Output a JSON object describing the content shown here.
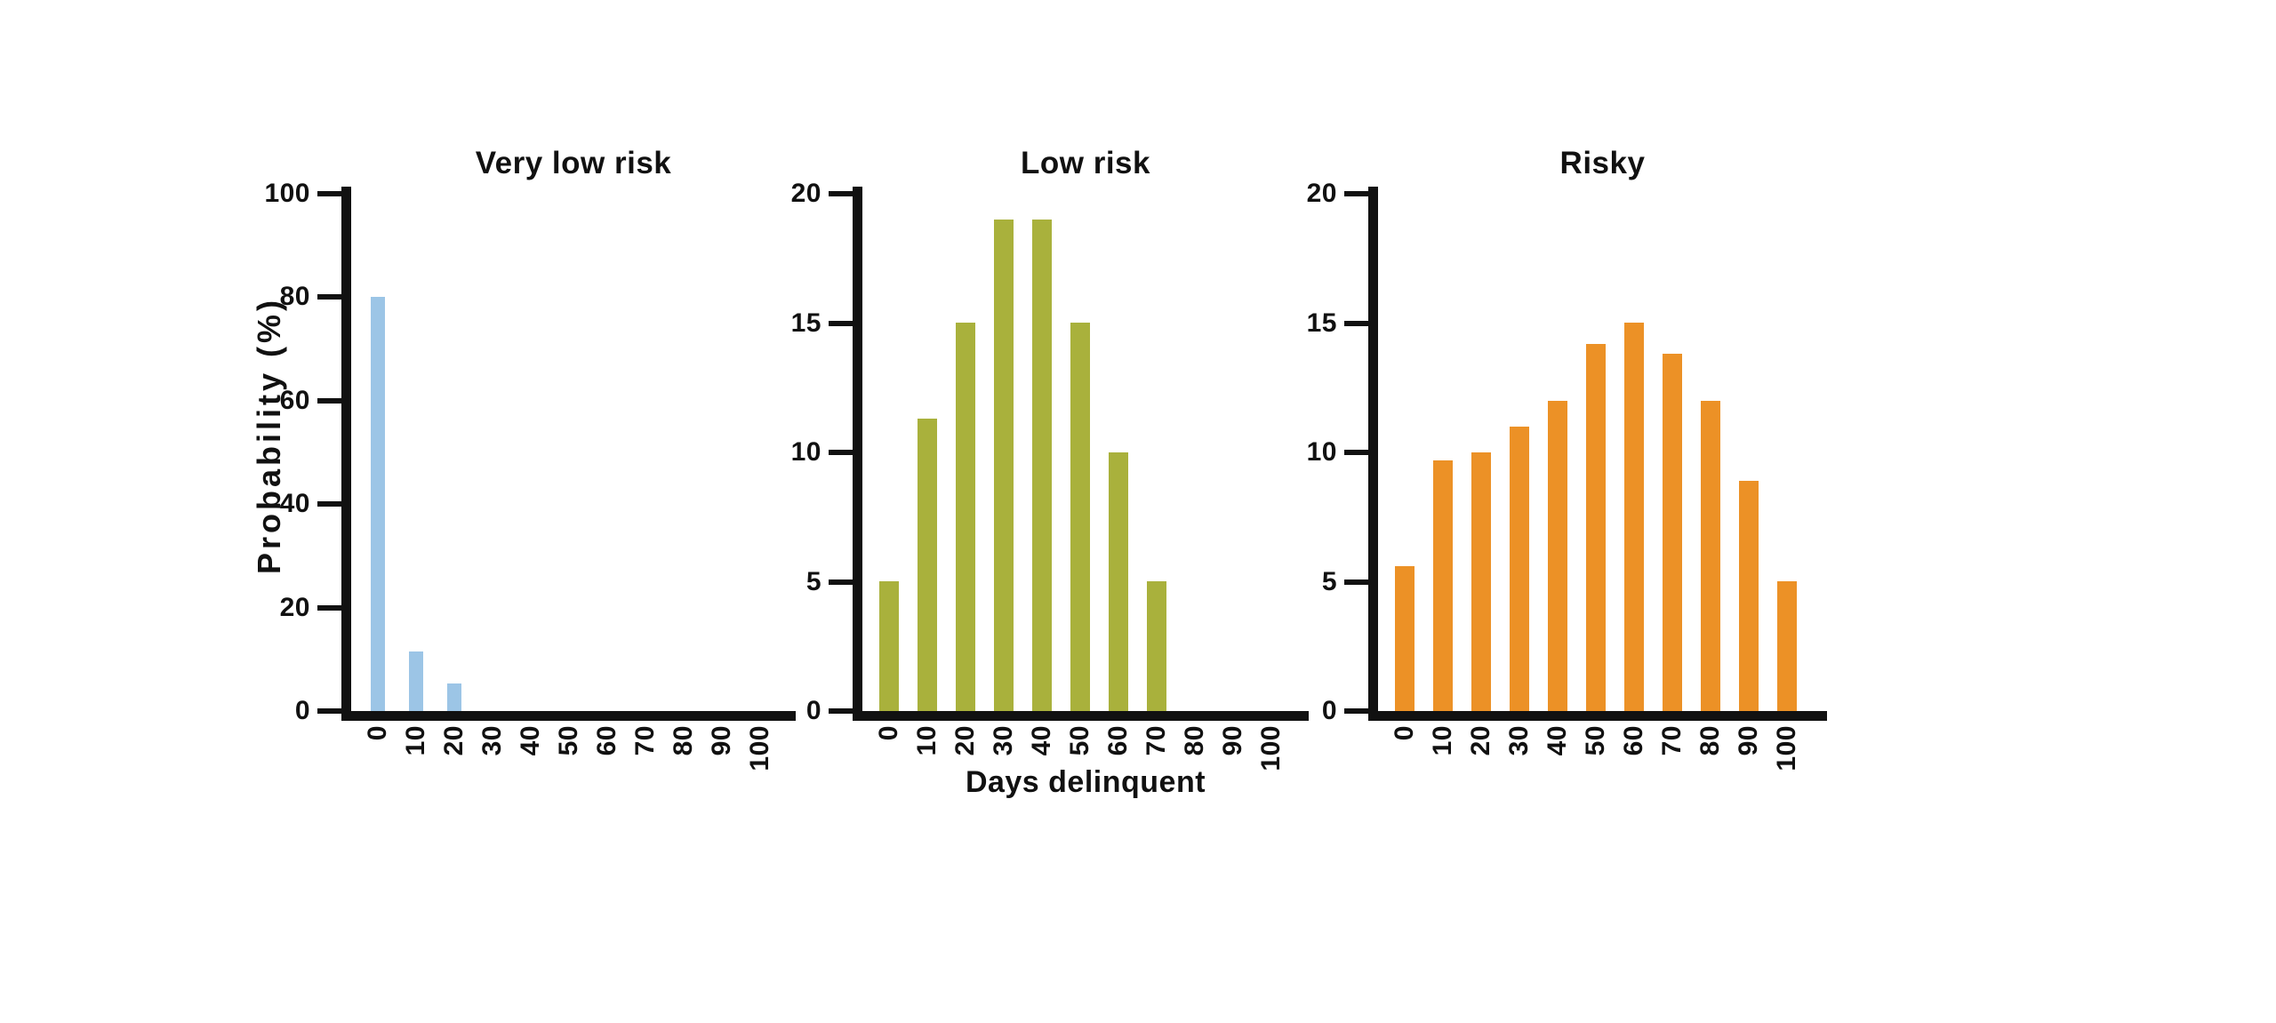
{
  "figure": {
    "background": "#ffffff",
    "text_color": "#111111"
  },
  "chart_data": [
    {
      "type": "bar",
      "title": "Very low risk",
      "ylabel": "Probability (%)",
      "xlabel": "",
      "bar_color": "#9CC5E6",
      "ylim": [
        0,
        100
      ],
      "y_ticks": [
        0,
        20,
        40,
        60,
        80,
        100
      ],
      "x_ticks": [
        0,
        10,
        20,
        30,
        40,
        50,
        60,
        70,
        80,
        90,
        100
      ],
      "x": [
        0,
        10,
        20
      ],
      "values": [
        80,
        11.5,
        5.3
      ],
      "grid": false,
      "legend": false
    },
    {
      "type": "bar",
      "title": "Low risk",
      "ylabel": "",
      "xlabel": "Days delinquent",
      "bar_color": "#A9B13C",
      "ylim": [
        0,
        20
      ],
      "y_ticks": [
        0,
        5,
        10,
        15,
        20
      ],
      "x_ticks": [
        0,
        10,
        20,
        30,
        40,
        50,
        60,
        70,
        80,
        90,
        100
      ],
      "x": [
        0,
        10,
        20,
        30,
        40,
        50,
        60,
        70
      ],
      "values": [
        5,
        11.3,
        15,
        19,
        19,
        15,
        10,
        5
      ],
      "grid": false,
      "legend": false
    },
    {
      "type": "bar",
      "title": "Risky",
      "ylabel": "",
      "xlabel": "",
      "bar_color": "#EC9126",
      "ylim": [
        0,
        20
      ],
      "y_ticks": [
        0,
        5,
        10,
        15,
        20
      ],
      "x_ticks": [
        0,
        10,
        20,
        30,
        40,
        50,
        60,
        70,
        80,
        90,
        100
      ],
      "x": [
        0,
        10,
        20,
        30,
        40,
        50,
        60,
        70,
        80,
        90,
        100
      ],
      "values": [
        5.6,
        9.7,
        10,
        11,
        12,
        14.2,
        15,
        13.8,
        12,
        8.9,
        5
      ],
      "grid": false,
      "legend": false
    }
  ]
}
